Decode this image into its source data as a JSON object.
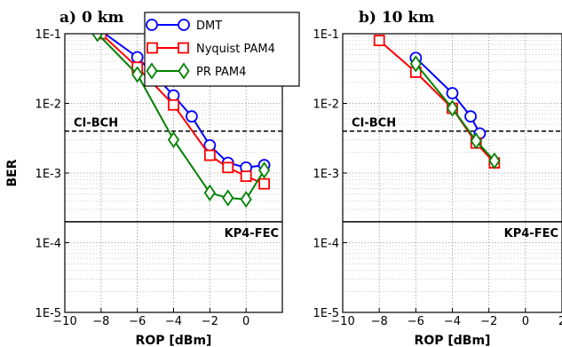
{
  "chart_data": [
    {
      "type": "line",
      "title": "a) 0 km",
      "xlabel": "ROP [dBm]",
      "ylabel": "BER",
      "xlim": [
        -10,
        2
      ],
      "ylim": [
        1e-05,
        0.1
      ],
      "yscale": "log",
      "xticks": [
        -10,
        -8,
        -6,
        -4,
        -2,
        0
      ],
      "xtick_labels": [
        "−10",
        "−8",
        "−6",
        "−4",
        "−2",
        "0"
      ],
      "yticks": [
        1e-05,
        0.0001,
        0.001,
        0.01,
        0.1
      ],
      "ytick_labels": [
        "1E-5",
        "1E-4",
        "1E-3",
        "1E-2",
        "1E-1"
      ],
      "grid": true,
      "legend": "top-right",
      "series": [
        {
          "name": "DMT",
          "color": "#0000ff",
          "marker": "circle",
          "x": [
            -8.0,
            -6.0,
            -4.0,
            -3.0,
            -2.0,
            -1.0,
            0.0,
            1.0
          ],
          "y": [
            0.11,
            0.046,
            0.013,
            0.0065,
            0.0025,
            0.0014,
            0.0012,
            0.0013
          ]
        },
        {
          "name": "Nyquist PAM4",
          "color": "#ff0000",
          "marker": "square",
          "x": [
            -8.0,
            -6.0,
            -4.0,
            -2.0,
            -1.0,
            0.0,
            1.0
          ],
          "y": [
            0.1,
            0.033,
            0.0095,
            0.0018,
            0.0012,
            0.0009,
            0.0007
          ]
        },
        {
          "name": "PR PAM4",
          "color": "#008000",
          "marker": "diamond",
          "x": [
            -8.2,
            -6.0,
            -4.0,
            -2.0,
            -1.0,
            0.0,
            1.0
          ],
          "y": [
            0.1,
            0.026,
            0.003,
            0.00052,
            0.00044,
            0.00042,
            0.0011
          ]
        }
      ],
      "annotations": [
        {
          "text": "CI-BCH",
          "y": 0.004,
          "style": "dashed"
        },
        {
          "text": "KP4-FEC",
          "y": 0.0002,
          "style": "solid"
        }
      ]
    },
    {
      "type": "line",
      "title": "b) 10 km",
      "xlabel": "ROP [dBm]",
      "ylabel": "",
      "xlim": [
        -10,
        2
      ],
      "ylim": [
        1e-05,
        0.1
      ],
      "yscale": "log",
      "xticks": [
        -10,
        -8,
        -6,
        -4,
        -2,
        0,
        2
      ],
      "xtick_labels": [
        "−10",
        "−8",
        "−6",
        "−4",
        "−2",
        "0",
        "2"
      ],
      "yticks": [
        1e-05,
        0.0001,
        0.001,
        0.01,
        0.1
      ],
      "ytick_labels": [
        "1E-5",
        "1E-4",
        "1E-3",
        "1E-2",
        "1E-1"
      ],
      "grid": true,
      "series": [
        {
          "name": "DMT",
          "color": "#0000ff",
          "marker": "circle",
          "x": [
            -6.0,
            -4.0,
            -3.0,
            -2.5
          ],
          "y": [
            0.045,
            0.014,
            0.0065,
            0.0037
          ]
        },
        {
          "name": "Nyquist PAM4",
          "color": "#ff0000",
          "marker": "square",
          "x": [
            -8.0,
            -6.0,
            -4.0,
            -2.7,
            -1.7
          ],
          "y": [
            0.08,
            0.028,
            0.0085,
            0.0027,
            0.0014
          ]
        },
        {
          "name": "PR PAM4",
          "color": "#008000",
          "marker": "diamond",
          "x": [
            -6.0,
            -4.0,
            -2.7,
            -1.7
          ],
          "y": [
            0.037,
            0.0085,
            0.0029,
            0.0015
          ]
        }
      ],
      "annotations": [
        {
          "text": "CI-BCH",
          "y": 0.004,
          "style": "dashed"
        },
        {
          "text": "KP4-FEC",
          "y": 0.0002,
          "style": "solid"
        }
      ]
    }
  ]
}
